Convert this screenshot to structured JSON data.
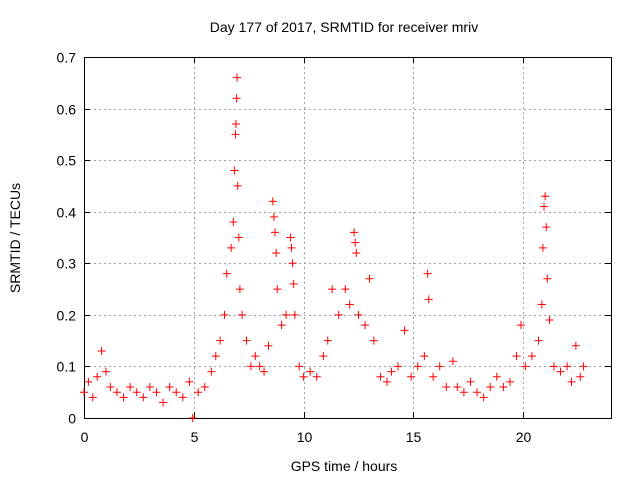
{
  "chart_data": {
    "type": "scatter",
    "title": "Day 177 of 2017, SRMTID for receiver mriv",
    "xlabel": "GPS time / hours",
    "ylabel": "SRMTID / TECUs",
    "xlim": [
      0,
      24
    ],
    "ylim": [
      0,
      0.7
    ],
    "x_ticks": [
      0,
      5,
      10,
      15,
      20
    ],
    "x_tick_labels": [
      "0",
      "5",
      "10",
      "15",
      "20"
    ],
    "y_ticks": [
      0,
      0.1,
      0.2,
      0.3,
      0.4,
      0.5,
      0.6,
      0.7
    ],
    "y_tick_labels": [
      "0",
      "0.1",
      "0.2",
      "0.3",
      "0.4",
      "0.5",
      "0.6",
      "0.7"
    ],
    "grid": true,
    "marker": "+",
    "marker_color": "#ff0000",
    "series": [
      {
        "name": "SRMTID",
        "points": [
          [
            0.0,
            0.05
          ],
          [
            0.2,
            0.07
          ],
          [
            0.4,
            0.04
          ],
          [
            0.6,
            0.08
          ],
          [
            0.8,
            0.13
          ],
          [
            1.0,
            0.09
          ],
          [
            1.2,
            0.06
          ],
          [
            1.5,
            0.05
          ],
          [
            1.8,
            0.04
          ],
          [
            2.1,
            0.06
          ],
          [
            2.4,
            0.05
          ],
          [
            2.7,
            0.04
          ],
          [
            3.0,
            0.06
          ],
          [
            3.3,
            0.05
          ],
          [
            3.6,
            0.03
          ],
          [
            3.9,
            0.06
          ],
          [
            4.2,
            0.05
          ],
          [
            4.5,
            0.04
          ],
          [
            4.8,
            0.07
          ],
          [
            4.95,
            0.0
          ],
          [
            5.2,
            0.05
          ],
          [
            5.5,
            0.06
          ],
          [
            5.8,
            0.09
          ],
          [
            6.0,
            0.12
          ],
          [
            6.2,
            0.15
          ],
          [
            6.4,
            0.2
          ],
          [
            6.5,
            0.28
          ],
          [
            6.7,
            0.33
          ],
          [
            6.8,
            0.38
          ],
          [
            6.85,
            0.48
          ],
          [
            6.9,
            0.55
          ],
          [
            6.92,
            0.57
          ],
          [
            6.95,
            0.62
          ],
          [
            6.97,
            0.66
          ],
          [
            7.0,
            0.45
          ],
          [
            7.05,
            0.35
          ],
          [
            7.1,
            0.25
          ],
          [
            7.2,
            0.2
          ],
          [
            7.4,
            0.15
          ],
          [
            7.6,
            0.1
          ],
          [
            7.8,
            0.12
          ],
          [
            8.0,
            0.1
          ],
          [
            8.2,
            0.09
          ],
          [
            8.4,
            0.14
          ],
          [
            8.6,
            0.42
          ],
          [
            8.65,
            0.39
          ],
          [
            8.7,
            0.36
          ],
          [
            8.75,
            0.32
          ],
          [
            8.8,
            0.25
          ],
          [
            9.0,
            0.18
          ],
          [
            9.2,
            0.2
          ],
          [
            9.4,
            0.35
          ],
          [
            9.45,
            0.33
          ],
          [
            9.5,
            0.3
          ],
          [
            9.55,
            0.26
          ],
          [
            9.6,
            0.2
          ],
          [
            9.8,
            0.1
          ],
          [
            10.0,
            0.08
          ],
          [
            10.3,
            0.09
          ],
          [
            10.6,
            0.08
          ],
          [
            10.9,
            0.12
          ],
          [
            11.1,
            0.15
          ],
          [
            11.3,
            0.25
          ],
          [
            11.6,
            0.2
          ],
          [
            11.9,
            0.25
          ],
          [
            12.1,
            0.22
          ],
          [
            12.3,
            0.36
          ],
          [
            12.35,
            0.34
          ],
          [
            12.4,
            0.32
          ],
          [
            12.5,
            0.2
          ],
          [
            12.8,
            0.18
          ],
          [
            13.0,
            0.27
          ],
          [
            13.2,
            0.15
          ],
          [
            13.5,
            0.08
          ],
          [
            13.8,
            0.07
          ],
          [
            14.0,
            0.09
          ],
          [
            14.3,
            0.1
          ],
          [
            14.6,
            0.17
          ],
          [
            14.9,
            0.08
          ],
          [
            15.2,
            0.1
          ],
          [
            15.5,
            0.12
          ],
          [
            15.65,
            0.28
          ],
          [
            15.7,
            0.23
          ],
          [
            15.9,
            0.08
          ],
          [
            16.2,
            0.1
          ],
          [
            16.5,
            0.06
          ],
          [
            16.8,
            0.11
          ],
          [
            17.0,
            0.06
          ],
          [
            17.3,
            0.05
          ],
          [
            17.6,
            0.07
          ],
          [
            17.9,
            0.05
          ],
          [
            18.2,
            0.04
          ],
          [
            18.5,
            0.06
          ],
          [
            18.8,
            0.08
          ],
          [
            19.1,
            0.06
          ],
          [
            19.4,
            0.07
          ],
          [
            19.7,
            0.12
          ],
          [
            19.9,
            0.18
          ],
          [
            20.1,
            0.1
          ],
          [
            20.4,
            0.12
          ],
          [
            20.7,
            0.15
          ],
          [
            20.85,
            0.22
          ],
          [
            20.9,
            0.33
          ],
          [
            20.95,
            0.41
          ],
          [
            21.0,
            0.43
          ],
          [
            21.05,
            0.37
          ],
          [
            21.1,
            0.27
          ],
          [
            21.2,
            0.19
          ],
          [
            21.4,
            0.1
          ],
          [
            21.7,
            0.09
          ],
          [
            22.0,
            0.1
          ],
          [
            22.2,
            0.07
          ],
          [
            22.4,
            0.14
          ],
          [
            22.6,
            0.08
          ],
          [
            22.75,
            0.1
          ]
        ]
      }
    ]
  }
}
